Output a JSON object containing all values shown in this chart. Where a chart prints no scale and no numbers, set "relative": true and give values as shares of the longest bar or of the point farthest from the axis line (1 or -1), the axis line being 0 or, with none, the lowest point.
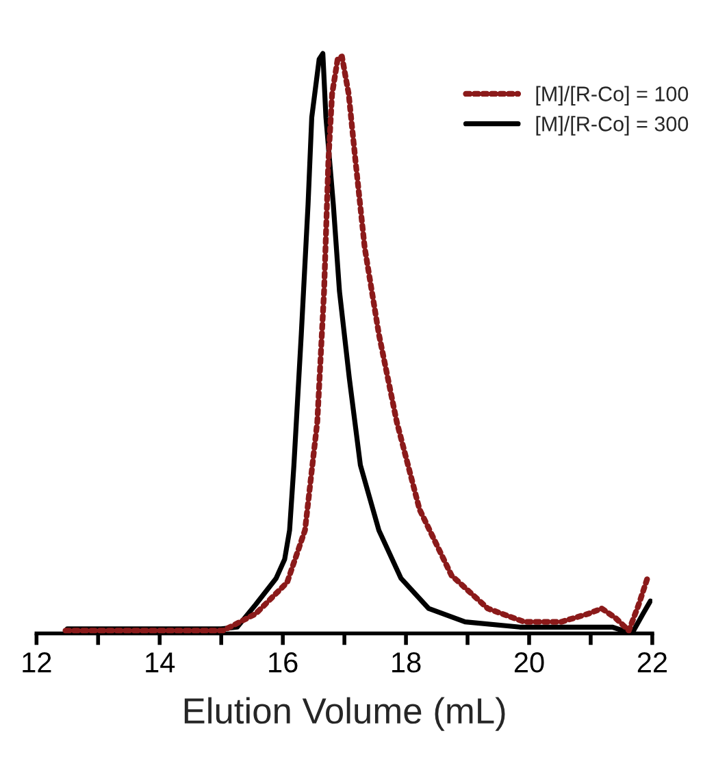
{
  "chart_data": {
    "type": "line",
    "relative": true,
    "xlabel": "Elution Volume (mL)",
    "xlim": [
      12,
      22
    ],
    "xticks": [
      12,
      {
        "value": 13,
        "label": null
      },
      14,
      {
        "value": 15,
        "label": null
      },
      16,
      {
        "value": 17,
        "label": null
      },
      18,
      {
        "value": 19,
        "label": null
      },
      20,
      {
        "value": 21,
        "label": null
      },
      22
    ],
    "legend": "top right",
    "marker": "none",
    "grid": false,
    "series": [
      {
        "name": "[M]/[R-Co] = 100",
        "color": "#8b1a1a",
        "line_style": "dotted",
        "x": [
          12.47,
          15.03,
          15.56,
          16.07,
          16.36,
          16.56,
          16.67,
          16.74,
          16.8,
          16.89,
          16.96,
          17.07,
          17.18,
          17.33,
          17.56,
          17.85,
          18.22,
          18.74,
          19.33,
          19.92,
          20.52,
          20.96,
          21.18,
          21.4,
          21.62,
          21.78,
          21.92
        ],
        "values": [
          0.005,
          0.005,
          0.034,
          0.088,
          0.178,
          0.365,
          0.59,
          0.815,
          0.93,
          0.99,
          0.995,
          0.93,
          0.815,
          0.665,
          0.516,
          0.365,
          0.214,
          0.1,
          0.043,
          0.02,
          0.02,
          0.034,
          0.043,
          0.027,
          0.005,
          0.05,
          0.095
        ]
      },
      {
        "name": "[M]/[R-Co] = 300",
        "color": "#000000",
        "line_style": "solid",
        "x": [
          12.5,
          15.0,
          15.26,
          15.56,
          15.89,
          16.03,
          16.11,
          16.18,
          16.3,
          16.41,
          16.47,
          16.59,
          16.65,
          16.7,
          16.82,
          16.92,
          17.08,
          17.26,
          17.56,
          17.92,
          18.37,
          18.96,
          19.85,
          20.6,
          21.35,
          21.67,
          21.85,
          21.97
        ],
        "values": [
          0.008,
          0.008,
          0.011,
          0.05,
          0.095,
          0.128,
          0.178,
          0.29,
          0.516,
          0.74,
          0.89,
          0.99,
          1.0,
          0.89,
          0.74,
          0.59,
          0.44,
          0.29,
          0.178,
          0.095,
          0.043,
          0.02,
          0.011,
          0.011,
          0.011,
          0.0,
          0.034,
          0.056
        ]
      }
    ]
  }
}
